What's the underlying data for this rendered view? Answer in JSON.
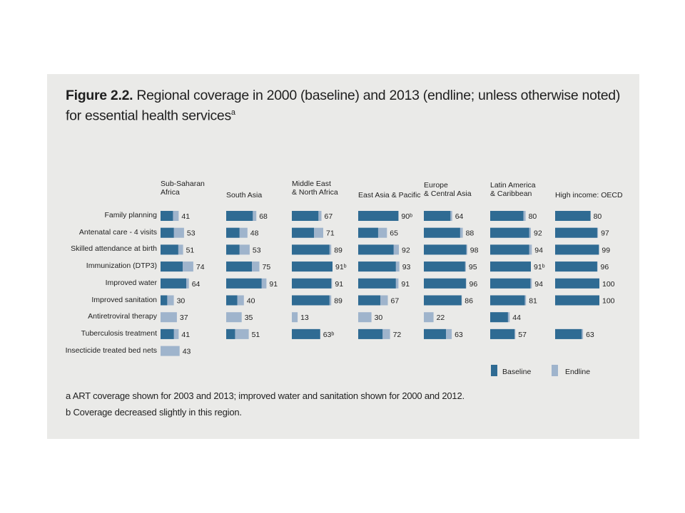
{
  "title": {
    "prefix": "Figure 2.2.",
    "text": "Regional coverage in 2000 (baseline) and 2013 (endline; unless otherwise noted) for essential health services",
    "superscript": "a"
  },
  "notes": [
    "a  ART coverage shown for 2003 and 2013; improved water and sanitation shown for 2000 and 2012.",
    "b  Coverage decreased slightly in this region."
  ],
  "legend": {
    "baseline": "Baseline",
    "endline": "Endline"
  },
  "colors": {
    "baseline": "#2f6b93",
    "endline": "#9fb4cc",
    "background": "#eaeae8"
  },
  "chart_data": {
    "type": "bar",
    "orientation": "horizontal",
    "categories": [
      "Family planning",
      "Antenatal care - 4 visits",
      "Skilled attendance at birth",
      "Immunization (DTP3)",
      "Improved water",
      "Improved sanitation",
      "Antiretroviral therapy",
      "Tuberculosis treatment",
      "Insecticide treated bed nets"
    ],
    "regions": [
      {
        "name": "Sub-Saharan\nAfrica",
        "baseline": [
          28,
          30,
          40,
          50,
          58,
          15,
          0,
          30,
          0
        ],
        "endline": [
          41,
          53,
          51,
          74,
          64,
          30,
          37,
          41,
          43
        ],
        "labels": [
          "41",
          "53",
          "51",
          "74",
          "64",
          "30",
          "37",
          "41",
          "43"
        ]
      },
      {
        "name": "South Asia",
        "baseline": [
          60,
          30,
          30,
          58,
          80,
          25,
          0,
          20,
          null
        ],
        "endline": [
          68,
          48,
          53,
          75,
          91,
          40,
          35,
          51,
          null
        ],
        "labels": [
          "68",
          "48",
          "53",
          "75",
          "91",
          "40",
          "35",
          "51",
          null
        ]
      },
      {
        "name": "Middle East\n& North Africa",
        "baseline": [
          60,
          50,
          85,
          92,
          89,
          85,
          0,
          64,
          null
        ],
        "endline": [
          67,
          71,
          89,
          91,
          91,
          89,
          13,
          63,
          null
        ],
        "labels": [
          "67",
          "71",
          "89",
          "91ᵇ",
          "91",
          "89",
          "13",
          "63ᵇ",
          null
        ]
      },
      {
        "name": "East Asia & Pacific",
        "baseline": [
          91,
          45,
          80,
          85,
          85,
          50,
          0,
          55,
          null
        ],
        "endline": [
          90,
          65,
          92,
          93,
          91,
          67,
          30,
          72,
          null
        ],
        "labels": [
          "90ᵇ",
          "65",
          "92",
          "93",
          "91",
          "67",
          "30",
          "72",
          null
        ]
      },
      {
        "name": "Europe\n& Central Asia",
        "baseline": [
          60,
          82,
          96,
          93,
          95,
          85,
          0,
          50,
          null
        ],
        "endline": [
          64,
          88,
          98,
          95,
          96,
          86,
          22,
          63,
          null
        ],
        "labels": [
          "64",
          "88",
          "98",
          "95",
          "96",
          "86",
          "22",
          "63",
          null
        ]
      },
      {
        "name": "Latin America\n& Caribbean",
        "baseline": [
          75,
          88,
          88,
          92,
          91,
          78,
          40,
          55,
          null
        ],
        "endline": [
          80,
          92,
          94,
          91,
          94,
          81,
          44,
          57,
          null
        ],
        "labels": [
          "80",
          "92",
          "94",
          "91ᵇ",
          "94",
          "81",
          "44",
          "57",
          null
        ]
      },
      {
        "name": "High income: OECD",
        "baseline": [
          80,
          95,
          99,
          95,
          100,
          100,
          null,
          60,
          null
        ],
        "endline": [
          80,
          97,
          99,
          96,
          100,
          100,
          null,
          63,
          null
        ],
        "labels": [
          "80",
          "97",
          "99",
          "96",
          "100",
          "100",
          null,
          "63",
          null
        ]
      }
    ],
    "xlim": [
      0,
      100
    ]
  }
}
